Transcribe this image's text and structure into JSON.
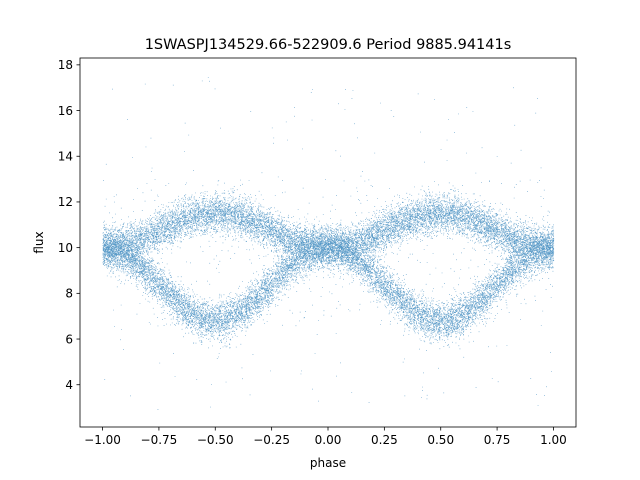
{
  "chart_data": {
    "type": "scatter",
    "title": "1SWASPJ134529.66-522909.6 Period 9885.94141s",
    "xlabel": "phase",
    "ylabel": "flux",
    "xlim": [
      -1.1,
      1.1
    ],
    "ylim": [
      2.15,
      18.3
    ],
    "xticks": [
      -1.0,
      -0.75,
      -0.5,
      -0.25,
      0.0,
      0.25,
      0.5,
      0.75,
      1.0
    ],
    "xtick_labels": [
      "−1.00",
      "−0.75",
      "−0.50",
      "−0.25",
      "0.00",
      "0.25",
      "0.50",
      "0.75",
      "1.00"
    ],
    "yticks": [
      4,
      6,
      8,
      10,
      12,
      14,
      16,
      18
    ],
    "ytick_labels": [
      "4",
      "6",
      "8",
      "10",
      "12",
      "14",
      "16",
      "18"
    ],
    "grid": false,
    "marker_color": "#1f77b4",
    "point_count": 60000,
    "phase_range": [
      -1.0,
      1.0
    ],
    "upper_branch": {
      "description_values": "flux near 10 at phase -1, 0, 1; maximum near 11.5 at phase -0.5 and 0.5",
      "anchor_phases": [
        -1.0,
        -0.5,
        0.0,
        0.5,
        1.0
      ],
      "anchor_flux": [
        10.0,
        11.5,
        10.0,
        11.5,
        10.0
      ]
    },
    "lower_branch": {
      "anchor_phases": [
        -1.0,
        -0.5,
        0.0,
        0.5,
        1.0
      ],
      "anchor_flux": [
        10.0,
        6.8,
        10.0,
        6.8,
        10.0
      ]
    },
    "outliers_flux_range": [
      2.8,
      17.5
    ]
  }
}
